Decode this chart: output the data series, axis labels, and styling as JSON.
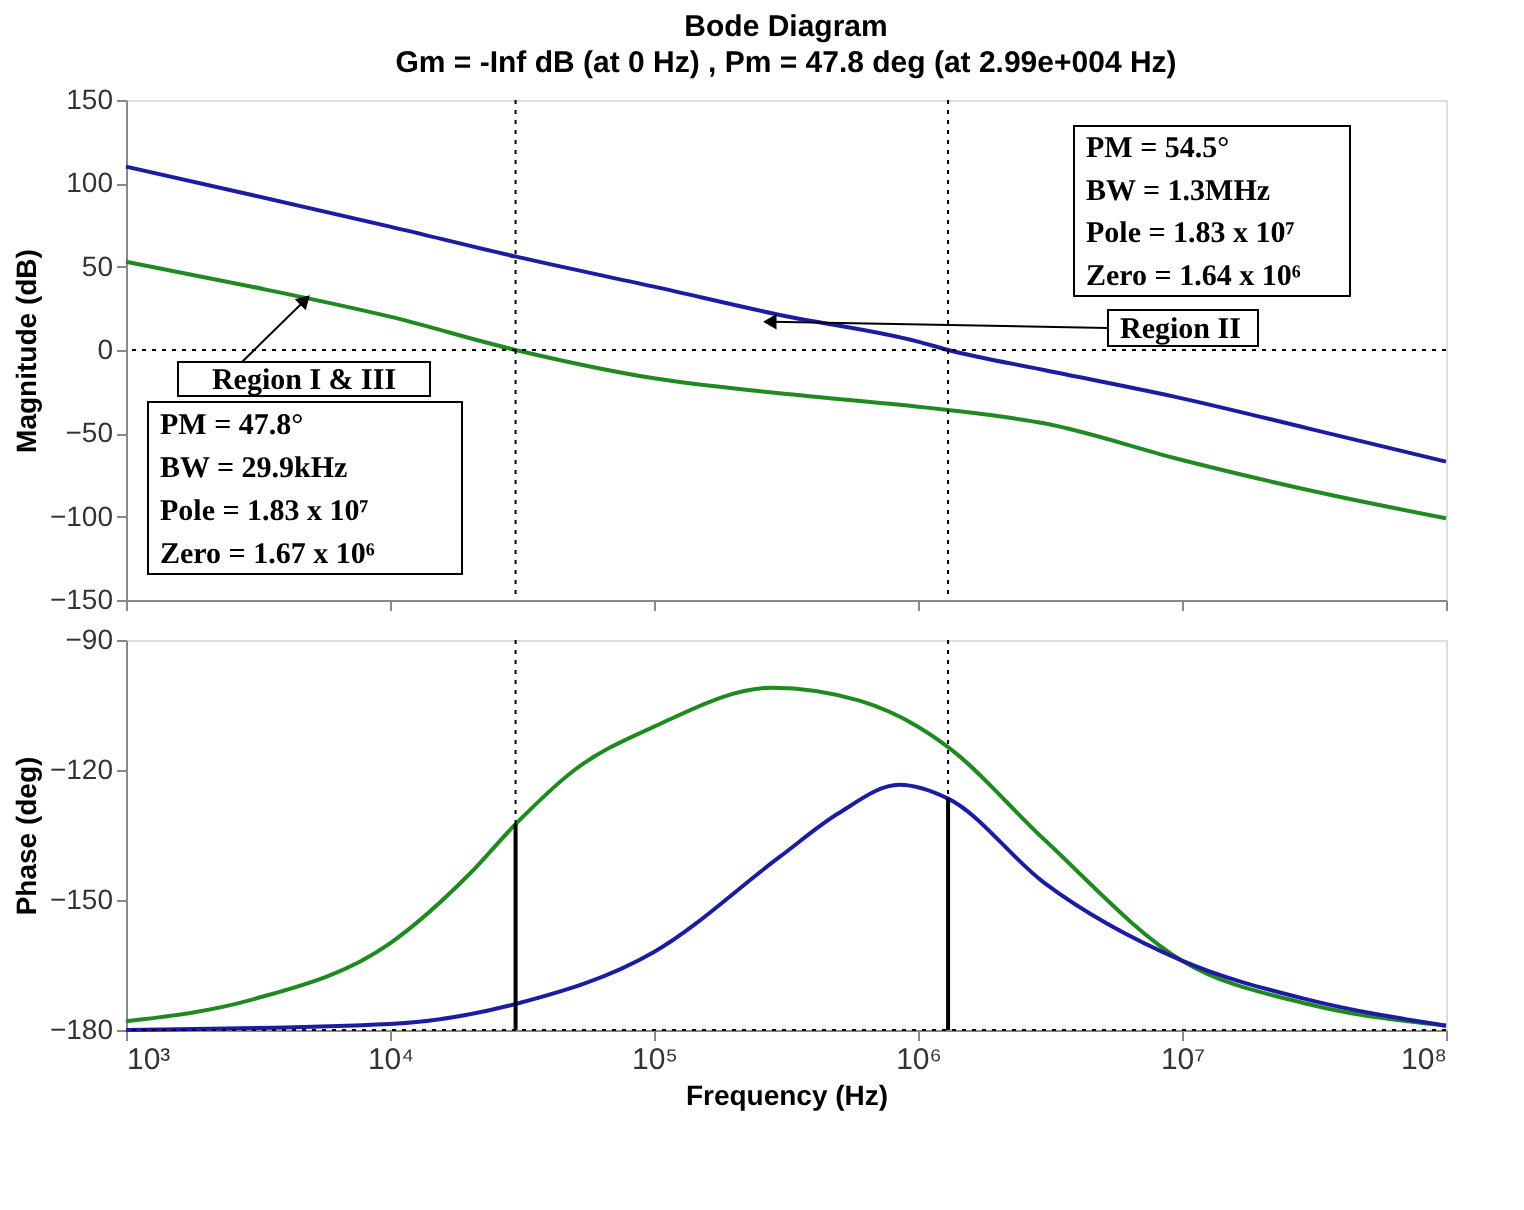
{
  "chart_data": [
    {
      "type": "line",
      "title": "Bode Diagram",
      "subtitle": "Gm = -Inf dB (at 0 Hz) ,  Pm = 47.8 deg (at 2.99e+004 Hz)",
      "ylabel": "Magnitude (dB)",
      "log": "x",
      "tick_labels": "y",
      "grid": false,
      "xlim": [
        1000,
        100000000
      ],
      "xticks": [
        1000,
        10000,
        100000,
        1000000,
        10000000,
        100000000
      ],
      "ylim": [
        -150,
        150
      ],
      "yticks": [
        -150,
        -100,
        -50,
        0,
        50,
        100,
        150
      ],
      "series": [
        {
          "color": "#1c1ca0",
          "x": [
            1000,
            3000,
            10000,
            30000,
            100000,
            300000,
            1000000,
            1300000,
            3000000,
            10000000,
            30000000,
            100000000
          ],
          "values": [
            110,
            93,
            74,
            56,
            38,
            21,
            5,
            0,
            -12,
            -29,
            -47,
            -67
          ]
        },
        {
          "color": "#1f8a1f",
          "x": [
            1000,
            3000,
            10000,
            29900,
            100000,
            300000,
            1000000,
            1300000,
            3000000,
            10000000,
            30000000,
            100000000
          ],
          "values": [
            53,
            38,
            20,
            0,
            -17,
            -26,
            -34,
            -36,
            -44,
            -66,
            -84,
            -101
          ]
        }
      ],
      "ref_lines": [
        {
          "axis": "y",
          "value": 0,
          "line_style": "dotted",
          "color": "#000000"
        },
        {
          "axis": "x",
          "value": 29900,
          "line_style": "dotted",
          "color": "#000000"
        },
        {
          "axis": "x",
          "value": 1300000,
          "line_style": "dotted",
          "color": "#000000"
        }
      ],
      "annotations": [
        "PM = 54.5°",
        "BW = 1.3MHz",
        "Pole = 1.83 x 10⁷",
        "Zero = 1.64 x 10⁶",
        {
          "text": "Region II",
          "x": 280000,
          "y": 17
        },
        {
          "text": "Region I & III",
          "x": 4700,
          "y": 29
        },
        "PM = 47.8°",
        "BW = 29.9kHz",
        "Pole = 1.83 x 10⁷",
        "Zero = 1.67 x 10⁶"
      ]
    },
    {
      "type": "line",
      "xlabel": "Frequency  (Hz)",
      "ylabel": "Phase (deg)",
      "log": "x",
      "grid": false,
      "xlim": [
        1000,
        100000000
      ],
      "xticks": [
        {
          "value": 1000,
          "label": "10³"
        },
        {
          "value": 10000,
          "label": "10⁴"
        },
        {
          "value": 100000,
          "label": "10⁵"
        },
        {
          "value": 1000000,
          "label": "10⁶"
        },
        {
          "value": 10000000,
          "label": "10⁷"
        },
        {
          "value": 100000000,
          "label": "10⁸"
        }
      ],
      "ylim": [
        -180,
        -90
      ],
      "yticks": [
        -180,
        -150,
        -120,
        -90
      ],
      "series": [
        {
          "color": "#1f8a1f",
          "x": [
            1000,
            3000,
            10000,
            20000,
            29900,
            50000,
            100000,
            280000,
            600000,
            1000000,
            1300000,
            3000000,
            10000000,
            30000000,
            100000000
          ],
          "values": [
            -178,
            -173,
            -160,
            -144,
            -132.5,
            -120,
            -110,
            -101,
            -104,
            -110,
            -114.7,
            -136,
            -164,
            -174,
            -179
          ]
        },
        {
          "color": "#1c1ca0",
          "x": [
            1000,
            10000,
            29900,
            100000,
            300000,
            500000,
            850000,
            1300000,
            3000000,
            10000000,
            30000000,
            100000000
          ],
          "values": [
            -180,
            -178.6,
            -174,
            -162,
            -140,
            -130,
            -123.4,
            -126.6,
            -146,
            -164,
            -173,
            -179
          ]
        },
        {
          "color": "#000000",
          "x": [
            29900,
            29900
          ],
          "values": [
            -180,
            -132.5
          ]
        },
        {
          "color": "#000000",
          "x": [
            1300000,
            1300000
          ],
          "values": [
            -180,
            -126.6
          ]
        }
      ],
      "ref_lines": [
        {
          "axis": "y",
          "value": -180,
          "line_style": "dotted",
          "color": "#000000"
        },
        {
          "axis": "x",
          "value": 29900,
          "line_style": "dotted",
          "color": "#000000"
        },
        {
          "axis": "x",
          "value": 1300000,
          "line_style": "dotted",
          "color": "#000000"
        }
      ]
    }
  ]
}
